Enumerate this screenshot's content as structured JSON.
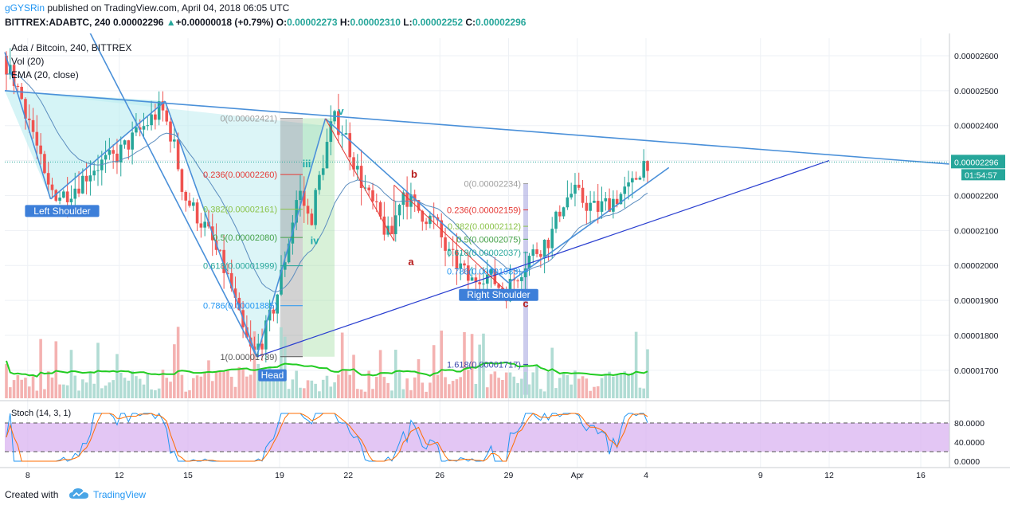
{
  "header": {
    "author": "gGYSRin",
    "published_text": "published on TradingView.com, April 04, 2018 06:05 UTC",
    "symbol": "BITTREX:ADABTC, 240",
    "last": "0.00002296",
    "change": "+0.00000018 (+0.79%)",
    "o_label": "O:",
    "o": "0.00002273",
    "h_label": "H:",
    "h": "0.00002310",
    "l_label": "L:",
    "l": "0.00002252",
    "c_label": "C:",
    "c": "0.00002296"
  },
  "legend": {
    "title": "Ada / Bitcoin, 240, BITTREX",
    "vol": "Vol (20)",
    "ema": "EMA (20, close)",
    "stoch": "Stoch (14, 3, 1)"
  },
  "price_axis": {
    "current_price": "0.00002296",
    "countdown": "01:54:57"
  },
  "footer": {
    "created_with": "Created with",
    "brand": "TradingView"
  },
  "colors": {
    "up": "#26a69a",
    "down": "#ef5350",
    "trend": "#4a90d9",
    "ema": "#5b8dbf",
    "vol_ma": "#22cc22",
    "stoch_k": "#2196f3",
    "stoch_d": "#ff6d00",
    "stoch_band": "#d9b3f0",
    "pattern_fill": "#b9ecf0"
  },
  "chart_data": {
    "type": "candlestick",
    "symbol": "BITTREX:ADABTC",
    "interval": "240",
    "y_range": [
      1.62e-05,
      2.65e-05
    ],
    "y_ticks": [
      "0.00002600",
      "0.00002500",
      "0.00002400",
      "0.00002300",
      "0.00002200",
      "0.00002100",
      "0.00002000",
      "0.00001900",
      "0.00001800",
      "0.00001700"
    ],
    "x_ticks": [
      "8",
      "12",
      "15",
      "19",
      "22",
      "26",
      "29",
      "Apr",
      "4",
      "9",
      "12",
      "16"
    ],
    "price_path": [
      [
        "2018-03-07 00:00",
        2.6e-05
      ],
      [
        "2018-03-07 16:00",
        2.52e-05
      ],
      [
        "2018-03-08 08:00",
        2.4e-05
      ],
      [
        "2018-03-09 00:00",
        2.22e-05
      ],
      [
        "2018-03-09 16:00",
        2.2e-05
      ],
      [
        "2018-03-10 08:00",
        2.23e-05
      ],
      [
        "2018-03-11 00:00",
        2.28e-05
      ],
      [
        "2018-03-12 00:00",
        2.31e-05
      ],
      [
        "2018-03-13 00:00",
        2.38e-05
      ],
      [
        "2018-03-14 00:00",
        2.45e-05
      ],
      [
        "2018-03-14 12:00",
        2.36e-05
      ],
      [
        "2018-03-15 00:00",
        2.2e-05
      ],
      [
        "2018-03-16 00:00",
        2.1e-05
      ],
      [
        "2018-03-17 00:00",
        1.95e-05
      ],
      [
        "2018-03-17 12:00",
        1.82e-05
      ],
      [
        "2018-03-18 00:00",
        1.74e-05
      ],
      [
        "2018-03-18 12:00",
        1.8e-05
      ],
      [
        "2018-03-19 00:00",
        1.9e-05
      ],
      [
        "2018-03-19 12:00",
        2.05e-05
      ],
      [
        "2018-03-20 00:00",
        2.22e-05
      ],
      [
        "2018-03-20 12:00",
        2.12e-05
      ],
      [
        "2018-03-21 00:00",
        2.28e-05
      ],
      [
        "2018-03-21 12:00",
        2.42e-05
      ],
      [
        "2018-03-22 00:00",
        2.38e-05
      ],
      [
        "2018-03-22 12:00",
        2.28e-05
      ],
      [
        "2018-03-23 00:00",
        2.2e-05
      ],
      [
        "2018-03-23 12:00",
        2.14e-05
      ],
      [
        "2018-03-24 00:00",
        2.07e-05
      ],
      [
        "2018-03-24 12:00",
        2.22e-05
      ],
      [
        "2018-03-25 00:00",
        2.17e-05
      ],
      [
        "2018-03-26 00:00",
        2.12e-05
      ],
      [
        "2018-03-26 12:00",
        2.03e-05
      ],
      [
        "2018-03-27 00:00",
        2e-05
      ],
      [
        "2018-03-27 12:00",
        1.95e-05
      ],
      [
        "2018-03-28 00:00",
        1.98e-05
      ],
      [
        "2018-03-28 12:00",
        1.96e-05
      ],
      [
        "2018-03-29 00:00",
        1.92e-05
      ],
      [
        "2018-03-29 12:00",
        1.97e-05
      ],
      [
        "2018-03-30 00:00",
        2.02e-05
      ],
      [
        "2018-03-30 12:00",
        2.05e-05
      ],
      [
        "2018-03-31 00:00",
        2.08e-05
      ],
      [
        "2018-03-31 12:00",
        2.18e-05
      ],
      [
        "2018-04-01 00:00",
        2.21e-05
      ],
      [
        "2018-04-01 12:00",
        2.18e-05
      ],
      [
        "2018-04-02 00:00",
        2.16e-05
      ],
      [
        "2018-04-02 12:00",
        2.18e-05
      ],
      [
        "2018-04-03 00:00",
        2.2e-05
      ],
      [
        "2018-04-03 12:00",
        2.22e-05
      ],
      [
        "2018-04-04 00:00",
        2.29e-05
      ],
      [
        "2018-04-04 04:00",
        2.3e-05
      ]
    ],
    "annotations": [
      {
        "text": "Left Shoulder",
        "style": "label-blue"
      },
      {
        "text": "Head",
        "style": "label-blue"
      },
      {
        "text": "Right Shoulder",
        "style": "label-blue"
      },
      {
        "text": "iii",
        "style": "wave-teal"
      },
      {
        "text": "iv",
        "style": "wave-teal"
      },
      {
        "text": "v",
        "style": "wave-teal"
      },
      {
        "text": "a",
        "style": "wave-red"
      },
      {
        "text": "b",
        "style": "wave-red"
      },
      {
        "text": "c",
        "style": "wave-red"
      }
    ],
    "fib_big": [
      {
        "label": "0(0.00002421)",
        "value": 2.421e-05
      },
      {
        "label": "0.236(0.00002260)",
        "value": 2.26e-05
      },
      {
        "label": "0.382(0.00002161)",
        "value": 2.161e-05
      },
      {
        "label": "0.5(0.00002080)",
        "value": 2.08e-05
      },
      {
        "label": "0.618(0.00001999)",
        "value": 1.999e-05
      },
      {
        "label": "0.786(0.00001885)",
        "value": 1.885e-05
      },
      {
        "label": "1(0.00001739)",
        "value": 1.739e-05
      }
    ],
    "fib_small": [
      {
        "label": "0(0.00002234)",
        "value": 2.234e-05
      },
      {
        "label": "0.236(0.00002159)",
        "value": 2.159e-05
      },
      {
        "label": "0.382(0.00002112)",
        "value": 2.112e-05
      },
      {
        "label": "0.5(0.00002075)",
        "value": 2.075e-05
      },
      {
        "label": "0.618(0.00002037)",
        "value": 2.037e-05
      },
      {
        "label": "0.786(0.00001983)",
        "value": 1.983e-05
      },
      {
        "label": "1",
        "value": 1.915e-05
      },
      {
        "label": "1.618(0.00001717)",
        "value": 1.717e-05
      }
    ],
    "stoch": {
      "params": "14, 3, 1",
      "y_ticks": [
        "80.0000",
        "40.0000",
        "0.0000"
      ],
      "bands": [
        20,
        80
      ]
    }
  }
}
